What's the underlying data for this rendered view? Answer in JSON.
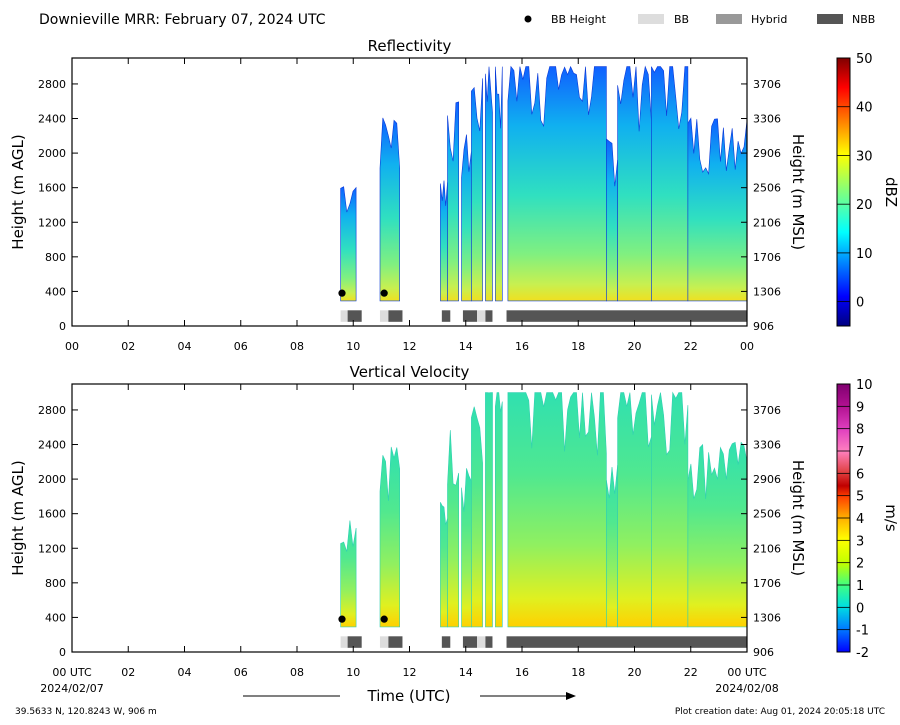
{
  "header": {
    "title": "Downieville MRR:  February 07, 2024 UTC"
  },
  "legend": {
    "items": [
      {
        "label": "BB Height",
        "marker": "dot",
        "color": "#000000"
      },
      {
        "label": "BB",
        "marker": "box",
        "color": "#dddddd"
      },
      {
        "label": "Hybrid",
        "marker": "box",
        "color": "#999999"
      },
      {
        "label": "NBB",
        "marker": "box",
        "color": "#555555"
      }
    ]
  },
  "footer": {
    "location": "39.5633 N, 120.8243 W, 906 m",
    "created": "Plot creation date: Aug 01, 2024 20:05:18 UTC"
  },
  "chart_data": [
    {
      "type": "heatmap",
      "title": "Reflectivity",
      "ylabel": "Height (m AGL)",
      "ylabel_right": "Height (m MSL)",
      "xlim": [
        0,
        24
      ],
      "ylim": [
        0,
        3100
      ],
      "x_ticks": [
        "00",
        "02",
        "04",
        "06",
        "08",
        "10",
        "12",
        "14",
        "16",
        "18",
        "20",
        "22",
        "00"
      ],
      "y_ticks_left": [
        0,
        400,
        800,
        1200,
        1600,
        2000,
        2400,
        2800
      ],
      "y_ticks_right": [
        "906",
        "1306",
        "1706",
        "2106",
        "2506",
        "2906",
        "3306",
        "3706"
      ],
      "colorbar": {
        "label": "dBZ",
        "range": [
          -5,
          50
        ],
        "ticks": [
          0,
          10,
          20,
          30,
          40,
          50
        ],
        "colormap": "jet"
      },
      "echo_segments": [
        {
          "start": 9.55,
          "end": 10.1,
          "top": 1600,
          "base": 290
        },
        {
          "start": 10.95,
          "end": 11.65,
          "top": 2300,
          "base": 290
        },
        {
          "start": 13.1,
          "end": 13.35,
          "top": 1650,
          "base": 290
        },
        {
          "start": 13.35,
          "end": 13.75,
          "top": 2450,
          "base": 290
        },
        {
          "start": 13.85,
          "end": 14.2,
          "top": 2100,
          "base": 290
        },
        {
          "start": 14.2,
          "end": 14.6,
          "top": 2700,
          "base": 290
        },
        {
          "start": 14.7,
          "end": 14.95,
          "top": 3000,
          "base": 290
        },
        {
          "start": 15.05,
          "end": 15.3,
          "top": 2900,
          "base": 290
        },
        {
          "start": 15.5,
          "end": 19.0,
          "top": 3000,
          "base": 290
        },
        {
          "start": 19.0,
          "end": 19.4,
          "top": 2100,
          "base": 290
        },
        {
          "start": 19.4,
          "end": 20.6,
          "top": 3000,
          "base": 290
        },
        {
          "start": 20.6,
          "end": 21.9,
          "top": 3000,
          "base": 290
        },
        {
          "start": 21.9,
          "end": 24.0,
          "top": 2300,
          "base": 290
        }
      ],
      "bright_band_flags": [
        {
          "start": 9.55,
          "end": 9.8,
          "type": "BB"
        },
        {
          "start": 9.8,
          "end": 10.3,
          "type": "NBB"
        },
        {
          "start": 10.95,
          "end": 11.25,
          "type": "BB"
        },
        {
          "start": 11.25,
          "end": 11.75,
          "type": "NBB"
        },
        {
          "start": 13.15,
          "end": 13.45,
          "type": "NBB"
        },
        {
          "start": 13.9,
          "end": 14.4,
          "type": "NBB"
        },
        {
          "start": 14.4,
          "end": 14.7,
          "type": "BB"
        },
        {
          "start": 14.7,
          "end": 14.95,
          "type": "NBB"
        },
        {
          "start": 15.45,
          "end": 24.0,
          "type": "NBB"
        }
      ],
      "bb_height_points": [
        {
          "x": 9.6,
          "y": 380
        },
        {
          "x": 11.1,
          "y": 380
        }
      ]
    },
    {
      "type": "heatmap",
      "title": "Vertical Velocity",
      "xlabel": "Time (UTC)",
      "ylabel": "Height (m AGL)",
      "ylabel_right": "Height (m MSL)",
      "xlim": [
        0,
        24
      ],
      "ylim": [
        0,
        3100
      ],
      "x_ticks": [
        "00 UTC",
        "02",
        "04",
        "06",
        "08",
        "10",
        "12",
        "14",
        "16",
        "18",
        "20",
        "22",
        "00 UTC"
      ],
      "x_date_start": "2024/02/07",
      "x_date_end": "2024/02/08",
      "y_ticks_left": [
        0,
        400,
        800,
        1200,
        1600,
        2000,
        2400,
        2800
      ],
      "y_ticks_right": [
        "906",
        "1306",
        "1706",
        "2106",
        "2506",
        "2906",
        "3306",
        "3706"
      ],
      "colorbar": {
        "label": "m/s",
        "range": [
          -2,
          10
        ],
        "ticks": [
          -2,
          -1,
          0,
          1,
          2,
          3,
          4,
          5,
          6,
          7,
          8,
          9,
          10
        ],
        "colormap": "velocity"
      },
      "echo_segments": [
        {
          "start": 9.55,
          "end": 10.1,
          "top": 1500,
          "base": 290
        },
        {
          "start": 10.95,
          "end": 11.65,
          "top": 2300,
          "base": 290
        },
        {
          "start": 13.1,
          "end": 13.35,
          "top": 1650,
          "base": 290
        },
        {
          "start": 13.35,
          "end": 13.75,
          "top": 2450,
          "base": 290
        },
        {
          "start": 13.85,
          "end": 14.2,
          "top": 2100,
          "base": 290
        },
        {
          "start": 14.2,
          "end": 14.6,
          "top": 2700,
          "base": 290
        },
        {
          "start": 14.7,
          "end": 14.95,
          "top": 3000,
          "base": 290
        },
        {
          "start": 15.05,
          "end": 15.3,
          "top": 2900,
          "base": 290
        },
        {
          "start": 15.5,
          "end": 19.0,
          "top": 3000,
          "base": 290
        },
        {
          "start": 19.0,
          "end": 19.4,
          "top": 2100,
          "base": 290
        },
        {
          "start": 19.4,
          "end": 20.6,
          "top": 3000,
          "base": 290
        },
        {
          "start": 20.6,
          "end": 21.9,
          "top": 3000,
          "base": 290
        },
        {
          "start": 21.9,
          "end": 24.0,
          "top": 2300,
          "base": 290
        }
      ],
      "bright_band_flags": [
        {
          "start": 9.55,
          "end": 9.8,
          "type": "BB"
        },
        {
          "start": 9.8,
          "end": 10.3,
          "type": "NBB"
        },
        {
          "start": 10.95,
          "end": 11.25,
          "type": "BB"
        },
        {
          "start": 11.25,
          "end": 11.75,
          "type": "NBB"
        },
        {
          "start": 13.15,
          "end": 13.45,
          "type": "NBB"
        },
        {
          "start": 13.9,
          "end": 14.4,
          "type": "NBB"
        },
        {
          "start": 14.4,
          "end": 14.7,
          "type": "BB"
        },
        {
          "start": 14.7,
          "end": 14.95,
          "type": "NBB"
        },
        {
          "start": 15.45,
          "end": 24.0,
          "type": "NBB"
        }
      ],
      "bb_height_points": [
        {
          "x": 9.6,
          "y": 380
        },
        {
          "x": 11.1,
          "y": 380
        }
      ]
    }
  ]
}
